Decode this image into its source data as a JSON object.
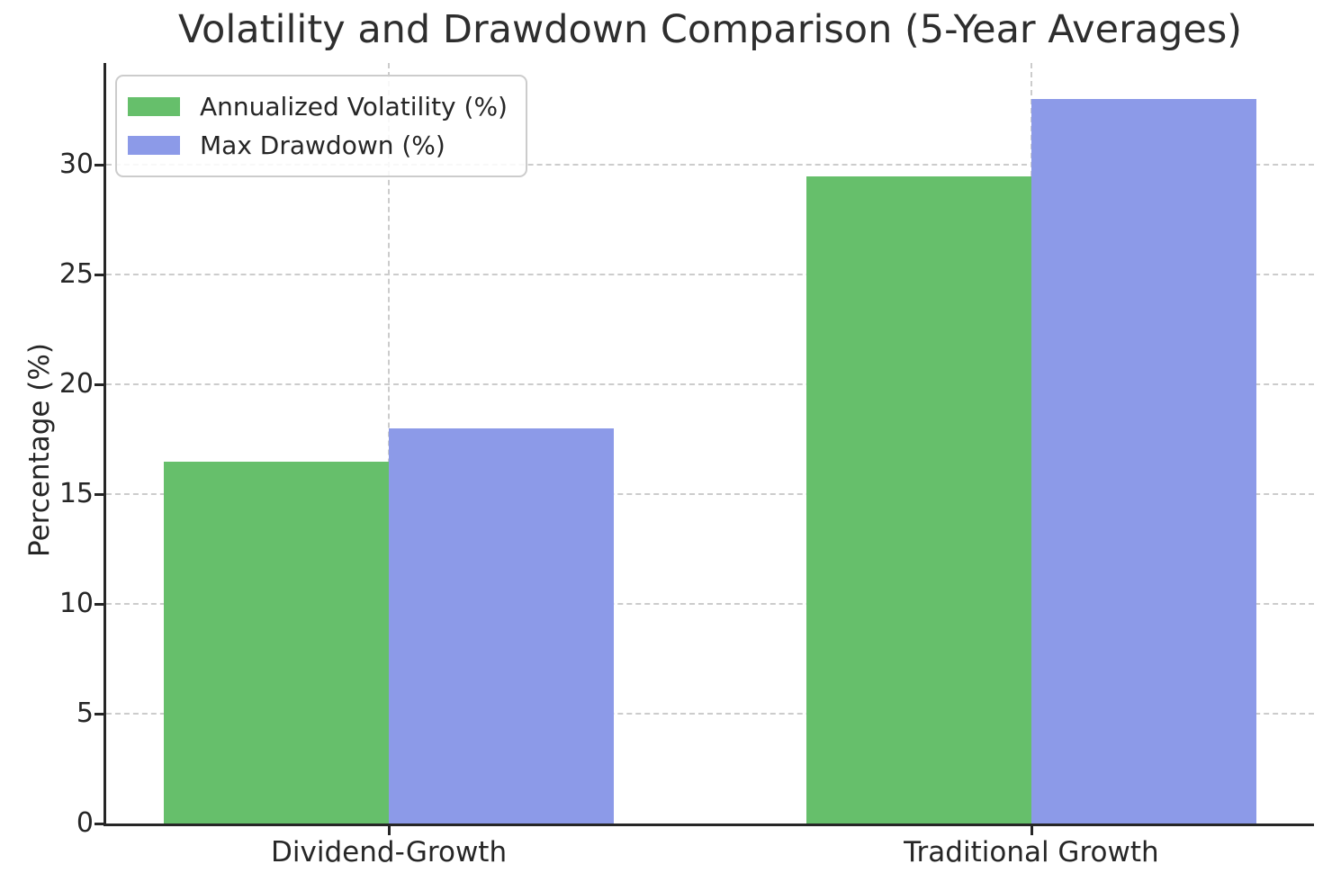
{
  "chart_data": {
    "type": "bar",
    "title": "Volatility and Drawdown Comparison (5-Year Averages)",
    "xlabel": "",
    "ylabel": "Percentage (%)",
    "categories": [
      "Dividend-Growth",
      "Traditional Growth"
    ],
    "series": [
      {
        "name": "Annualized Volatility (%)",
        "color": "#66bf6b",
        "values": [
          16.5,
          29.5
        ]
      },
      {
        "name": "Max Drawdown (%)",
        "color": "#8c9ae8",
        "values": [
          18.0,
          33.0
        ]
      }
    ],
    "ylim": [
      0,
      34.65
    ],
    "yticks": [
      0,
      5,
      10,
      15,
      20,
      25,
      30
    ],
    "grid": true,
    "grid_style": "dashed",
    "grid_color": "#cccccc",
    "legend_position": "upper left",
    "text_color": "#262626",
    "spine_color": "#262626",
    "bar_group_width_fraction": 0.7
  }
}
